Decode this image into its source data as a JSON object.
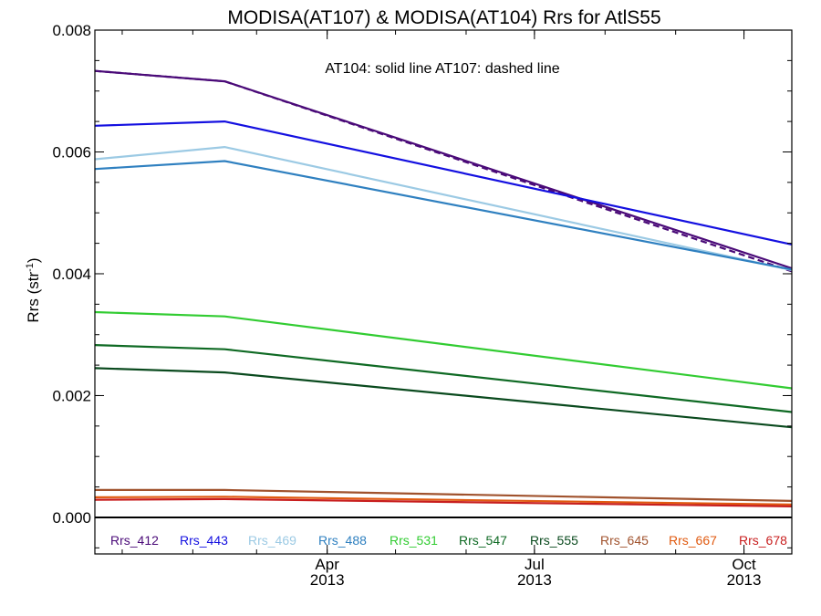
{
  "chart_data": {
    "type": "line",
    "title": "MODISA(AT107) & MODISA(AT104)  Rrs for AtlS55",
    "ylabel_main": "Rrs (str",
    "ylabel_sup": "-1",
    "ylabel_close": ")",
    "annotation": "AT104: solid line   AT107: dashed line",
    "ylim": [
      -0.0006,
      0.008
    ],
    "y_ticks": [
      {
        "value": 0.0,
        "label": "0.000"
      },
      {
        "value": 0.002,
        "label": "0.002"
      },
      {
        "value": 0.004,
        "label": "0.004"
      },
      {
        "value": 0.006,
        "label": "0.006"
      },
      {
        "value": 0.008,
        "label": "0.008"
      }
    ],
    "xlim": [
      "2012-12-20",
      "2013-10-22"
    ],
    "x_ticks": [
      {
        "date": "2013-04-01",
        "month": "Apr",
        "year": "2013"
      },
      {
        "date": "2013-07-01",
        "month": "Jul",
        "year": "2013"
      },
      {
        "date": "2013-10-01",
        "month": "Oct",
        "year": "2013"
      }
    ],
    "x_dates": [
      "2012-12-20",
      "2013-02-15",
      "2013-10-22"
    ],
    "zero_line": true,
    "series": [
      {
        "name": "Rrs_412",
        "color": "#4a0a78",
        "solid": [
          0.00733,
          0.00716,
          0.00409
        ],
        "dashed": [
          0.00733,
          0.00716,
          0.00404
        ]
      },
      {
        "name": "Rrs_443",
        "color": "#1410e0",
        "solid": [
          0.00643,
          0.0065,
          0.00448
        ]
      },
      {
        "name": "Rrs_469",
        "color": "#9ccae4",
        "solid": [
          0.00588,
          0.00608,
          0.00406
        ]
      },
      {
        "name": "Rrs_488",
        "color": "#2f80c0",
        "solid": [
          0.00572,
          0.00585,
          0.00407
        ]
      },
      {
        "name": "Rrs_531",
        "color": "#32cc32",
        "solid": [
          0.00337,
          0.0033,
          0.00212
        ]
      },
      {
        "name": "Rrs_547",
        "color": "#0f6a24",
        "solid": [
          0.00283,
          0.00276,
          0.00173
        ]
      },
      {
        "name": "Rrs_555",
        "color": "#0a4a1e",
        "solid": [
          0.00245,
          0.00238,
          0.00148
        ]
      },
      {
        "name": "Rrs_645",
        "color": "#a0522d",
        "solid": [
          0.00045,
          0.00045,
          0.00027
        ]
      },
      {
        "name": "Rrs_667",
        "color": "#e05a10",
        "solid": [
          0.00033,
          0.00034,
          0.00021
        ]
      },
      {
        "name": "Rrs_678",
        "color": "#c81e1e",
        "solid": [
          0.00029,
          0.0003,
          0.00018
        ]
      }
    ]
  }
}
